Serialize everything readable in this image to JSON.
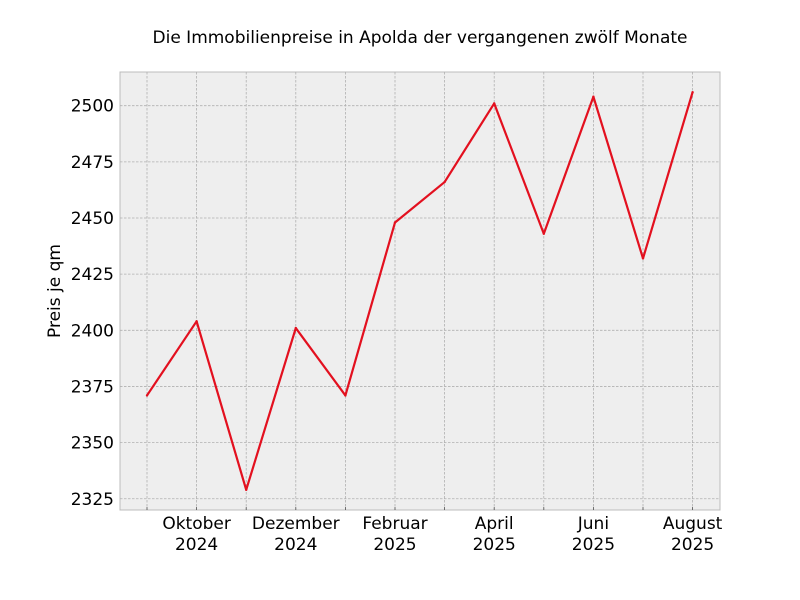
{
  "chart_data": {
    "type": "line",
    "title": "Die Immobilienpreise in Apolda der vergangenen zwölf Monate",
    "xlabel": "",
    "ylabel": "Preis je qm",
    "x": [
      "2024-09",
      "2024-10",
      "2024-11",
      "2024-12",
      "2025-01",
      "2025-02",
      "2025-03",
      "2025-04",
      "2025-05",
      "2025-06",
      "2025-07",
      "2025-08"
    ],
    "x_tick_labels": [
      {
        "x": "2024-10",
        "line1": "Oktober",
        "line2": "2024"
      },
      {
        "x": "2024-12",
        "line1": "Dezember",
        "line2": "2024"
      },
      {
        "x": "2025-02",
        "line1": "Februar",
        "line2": "2025"
      },
      {
        "x": "2025-04",
        "line1": "April",
        "line2": "2025"
      },
      {
        "x": "2025-06",
        "line1": "Juni",
        "line2": "2025"
      },
      {
        "x": "2025-08",
        "line1": "August",
        "line2": "2025"
      }
    ],
    "series": [
      {
        "values": [
          2371,
          2404,
          2329,
          2401,
          2371,
          2448,
          2466,
          2501,
          2443,
          2504,
          2432,
          2506
        ]
      }
    ],
    "yticks": [
      2325,
      2350,
      2375,
      2400,
      2425,
      2450,
      2475,
      2500
    ],
    "ylim": [
      2320,
      2515
    ],
    "grid": true,
    "line_color": "#e3101f",
    "plot_background": "#eeeeee"
  }
}
